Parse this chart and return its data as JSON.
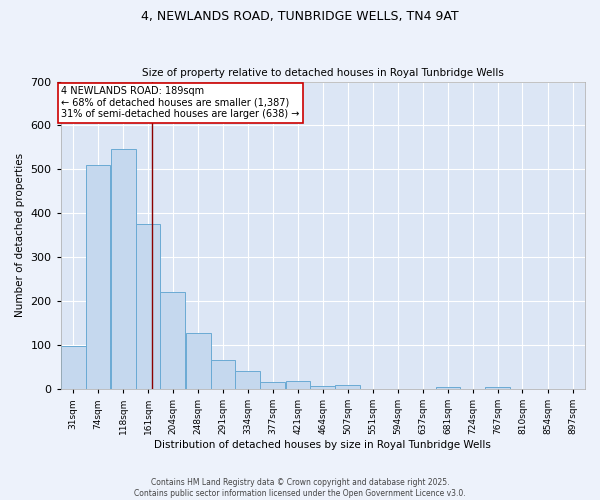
{
  "title": "4, NEWLANDS ROAD, TUNBRIDGE WELLS, TN4 9AT",
  "subtitle": "Size of property relative to detached houses in Royal Tunbridge Wells",
  "xlabel": "Distribution of detached houses by size in Royal Tunbridge Wells",
  "ylabel": "Number of detached properties",
  "bin_labels": [
    "31sqm",
    "74sqm",
    "118sqm",
    "161sqm",
    "204sqm",
    "248sqm",
    "291sqm",
    "334sqm",
    "377sqm",
    "421sqm",
    "464sqm",
    "507sqm",
    "551sqm",
    "594sqm",
    "637sqm",
    "681sqm",
    "724sqm",
    "767sqm",
    "810sqm",
    "854sqm",
    "897sqm"
  ],
  "bin_edges": [
    31,
    74,
    118,
    161,
    204,
    248,
    291,
    334,
    377,
    421,
    464,
    507,
    551,
    594,
    637,
    681,
    724,
    767,
    810,
    854,
    897
  ],
  "bar_heights": [
    97,
    511,
    547,
    376,
    220,
    128,
    66,
    40,
    15,
    18,
    8,
    10,
    0,
    0,
    0,
    5,
    0,
    5,
    0,
    0
  ],
  "bar_color": "#c5d8ee",
  "bar_edgecolor": "#6aaad4",
  "bar_linewidth": 0.7,
  "plot_bg_color": "#dce6f5",
  "fig_bg_color": "#edf2fb",
  "grid_color": "#ffffff",
  "red_line_x": 189,
  "annotation_text": "4 NEWLANDS ROAD: 189sqm\n← 68% of detached houses are smaller (1,387)\n31% of semi-detached houses are larger (638) →",
  "ylim": [
    0,
    700
  ],
  "yticks": [
    0,
    100,
    200,
    300,
    400,
    500,
    600,
    700
  ],
  "footer_line1": "Contains HM Land Registry data © Crown copyright and database right 2025.",
  "footer_line2": "Contains public sector information licensed under the Open Government Licence v3.0."
}
